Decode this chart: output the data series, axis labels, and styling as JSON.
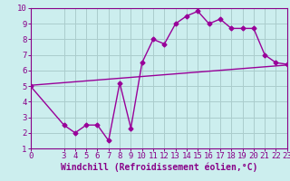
{
  "zigzag_x": [
    0,
    3,
    4,
    5,
    6,
    7,
    8,
    9,
    10,
    11,
    12,
    13,
    14,
    15,
    16,
    17,
    18,
    19,
    20,
    21,
    22,
    23
  ],
  "zigzag_y": [
    5.0,
    2.5,
    2.0,
    2.5,
    2.5,
    1.5,
    5.2,
    2.3,
    6.5,
    8.0,
    7.7,
    9.0,
    9.5,
    9.8,
    9.0,
    9.3,
    8.7,
    8.7,
    8.7,
    7.0,
    6.5,
    6.4
  ],
  "trend_x": [
    0,
    23
  ],
  "trend_y": [
    5.05,
    6.35
  ],
  "line_color": "#990099",
  "bg_color": "#cceeee",
  "grid_color": "#aacccc",
  "xlabel": "Windchill (Refroidissement éolien,°C)",
  "xlim": [
    0,
    23
  ],
  "ylim": [
    1,
    10
  ],
  "yticks": [
    1,
    2,
    3,
    4,
    5,
    6,
    7,
    8,
    9,
    10
  ],
  "xticks": [
    0,
    3,
    4,
    5,
    6,
    7,
    8,
    9,
    10,
    11,
    12,
    13,
    14,
    15,
    16,
    17,
    18,
    19,
    20,
    21,
    22,
    23
  ],
  "marker": "D",
  "markersize": 2.5,
  "linewidth": 1.0,
  "xlabel_fontsize": 7.0,
  "tick_fontsize": 6.5
}
